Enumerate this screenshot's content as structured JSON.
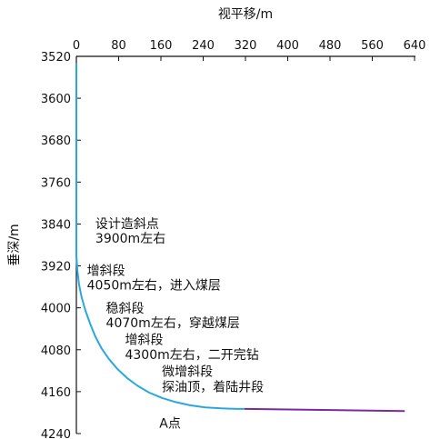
{
  "chart_data": {
    "type": "line",
    "xlabel": "视平移/m",
    "ylabel": "垂深/m",
    "x_axis_position": "top",
    "y_axis_inverted": true,
    "xlim": [
      0,
      640
    ],
    "ylim": [
      3520,
      4240
    ],
    "x_ticks": [
      "0",
      "80",
      "160",
      "240",
      "320",
      "400",
      "480",
      "560",
      "640"
    ],
    "y_ticks": [
      "3520",
      "3600",
      "3680",
      "3760",
      "3840",
      "3920",
      "4000",
      "4080",
      "4160",
      "4240"
    ],
    "grid": false,
    "series": [
      {
        "color": "#29a8e0",
        "x": [
          0,
          0,
          2,
          5,
          10,
          17,
          26,
          36,
          48,
          62,
          78,
          96,
          116,
          138,
          162,
          188,
          215,
          244,
          274,
          305,
          320
        ],
        "y": [
          3535,
          3900,
          3930,
          3955,
          3980,
          4005,
          4030,
          4055,
          4078,
          4098,
          4117,
          4134,
          4149,
          4162,
          4172,
          4180,
          4186,
          4190,
          4192,
          4193,
          4193
        ]
      },
      {
        "color": "#7a2a9e",
        "x": [
          320,
          620
        ],
        "y": [
          4193,
          4197
        ]
      }
    ],
    "annotations": [
      {
        "text": "设计造斜点",
        "x": 36,
        "y": 3848
      },
      {
        "text": "3900m左右",
        "x": 36,
        "y": 3876
      },
      {
        "text": "增斜段",
        "x": 20,
        "y": 3937
      },
      {
        "text": "4050m左右，进入煤层",
        "x": 20,
        "y": 3965
      },
      {
        "text": "稳斜段",
        "x": 56,
        "y": 4009
      },
      {
        "text": "4070m左右，穿越煤层",
        "x": 56,
        "y": 4037
      },
      {
        "text": "增斜段",
        "x": 92,
        "y": 4069
      },
      {
        "text": "4300m左右，二开完钻",
        "x": 92,
        "y": 4098
      },
      {
        "text": "微增斜段",
        "x": 162,
        "y": 4130
      },
      {
        "text": "探油顶，着陆井段",
        "x": 162,
        "y": 4159
      },
      {
        "text": "A点",
        "x": 157,
        "y": 4229
      }
    ]
  }
}
